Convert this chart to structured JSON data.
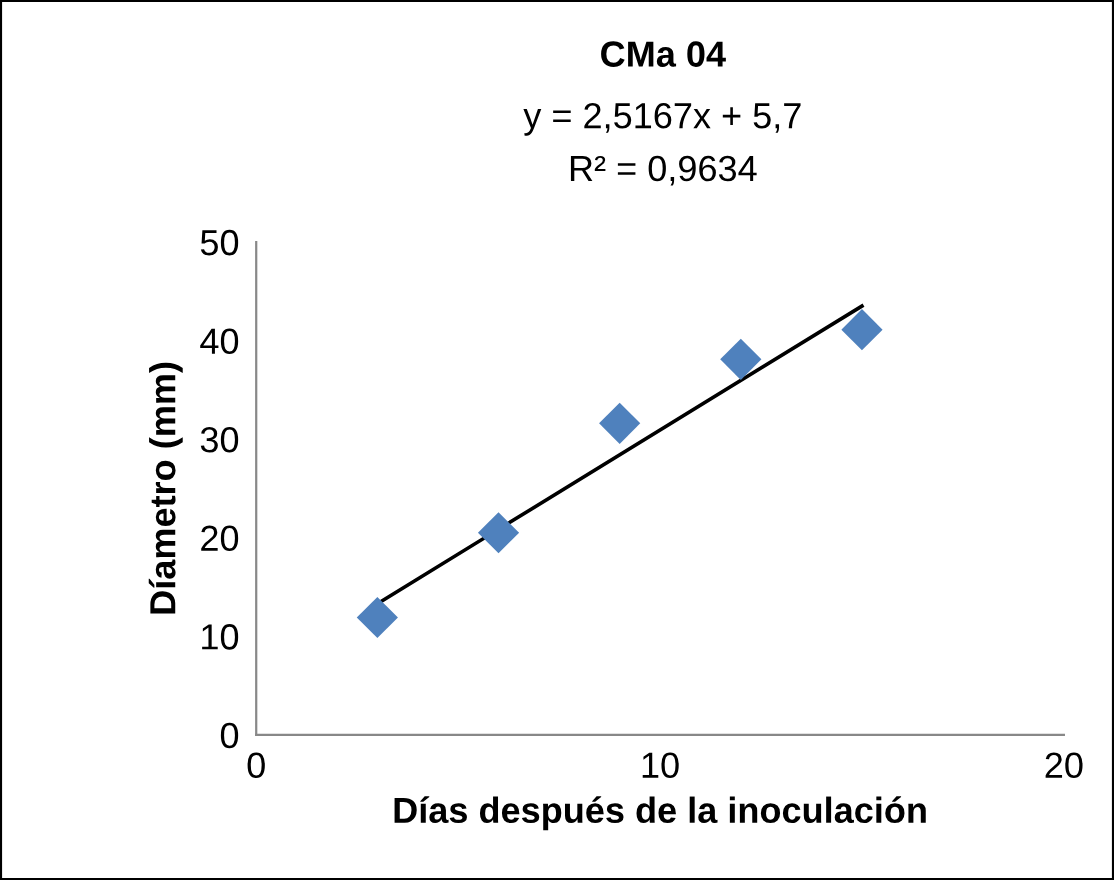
{
  "chart_data": {
    "type": "scatter",
    "title": "CMa 04",
    "xlabel": "Días después de la inoculación",
    "ylabel": "Díametro (mm)",
    "annotations": [
      "y = 2,5167x + 5,7",
      "R² = 0,9634"
    ],
    "xlim": [
      0,
      20
    ],
    "xticks": [
      0,
      10,
      20
    ],
    "ylim": [
      0,
      50
    ],
    "yticks": [
      0,
      10,
      20,
      30,
      40,
      50
    ],
    "grid": false,
    "legend": false,
    "marker": "diamond",
    "series": [
      {
        "color": "#4f81bd",
        "x": [
          3,
          6,
          9,
          12,
          15
        ],
        "values": [
          11.9,
          20.5,
          31.6,
          38.1,
          41.1
        ]
      },
      {
        "type": "line",
        "color": "#000000",
        "x": [
          3,
          15
        ],
        "values": [
          13.3,
          43.5
        ],
        "marker": "none",
        "line_style": "solid"
      }
    ]
  }
}
